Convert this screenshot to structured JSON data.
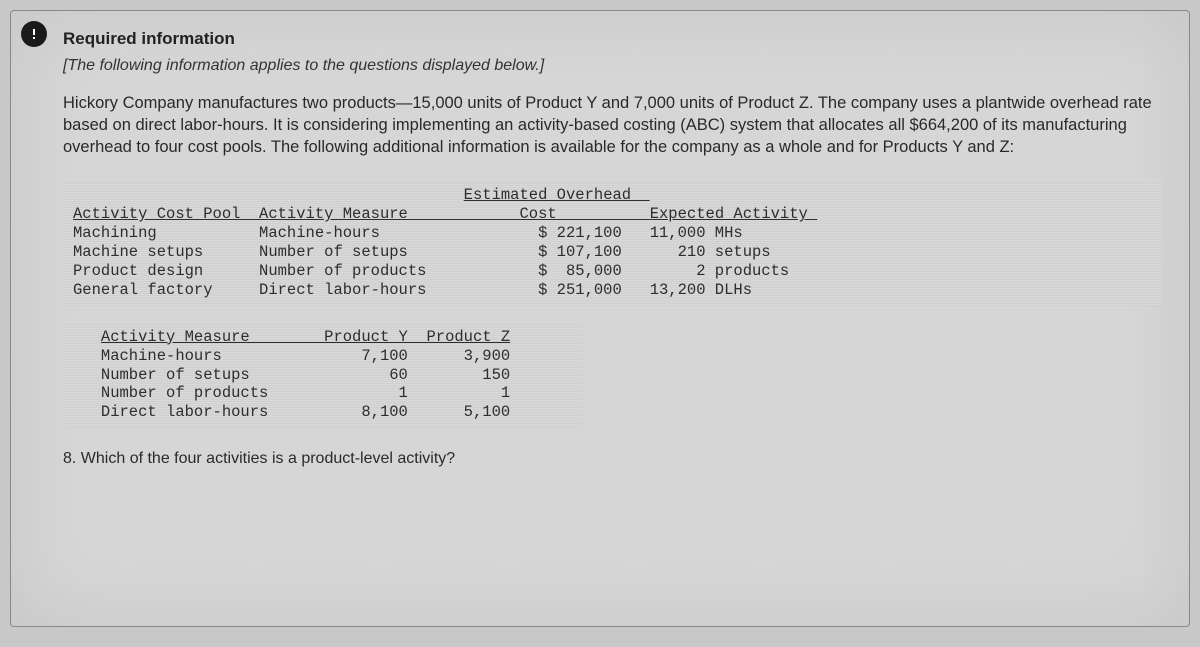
{
  "alert_icon_name": "warning-icon",
  "header": "Required information",
  "subheader": "[The following information applies to the questions displayed below.]",
  "paragraph": "Hickory Company manufactures two products—15,000 units of Product Y and 7,000 units of Product Z. The company uses a plantwide overhead rate based on direct labor-hours. It is considering implementing an activity-based costing (ABC) system that allocates all $664,200 of its manufacturing overhead to four cost pools. The following additional information is available for the company as a whole and for Products Y and Z:",
  "table1": {
    "type": "table",
    "font": "monospace",
    "font_size": 15.5,
    "text_color": "#2d2d2d",
    "background_pattern": [
      "#d0d0d0",
      "#d8d8d8"
    ],
    "columns": [
      "Activity Cost Pool",
      "Activity Measure",
      "Estimated Overhead Cost",
      "Expected Activity"
    ],
    "col_header_underline": true,
    "rows": [
      [
        "Machining",
        "Machine-hours",
        "$ 221,100",
        "11,000 MHs"
      ],
      [
        "Machine setups",
        "Number of setups",
        "$ 107,100",
        "   210 setups"
      ],
      [
        "Product design",
        "Number of products",
        "$  85,000",
        "     2 products"
      ],
      [
        "General factory",
        "Direct labor-hours",
        "$ 251,000",
        "13,200 DLHs"
      ]
    ],
    "col_widths_ch": [
      20,
      22,
      20,
      18
    ]
  },
  "table2": {
    "type": "table",
    "font": "monospace",
    "font_size": 15.5,
    "text_color": "#2d2d2d",
    "background_pattern": [
      "#d0d0d0",
      "#d8d8d8"
    ],
    "columns": [
      "Activity Measure",
      "Product Y",
      "Product Z"
    ],
    "col_header_underline": true,
    "rows": [
      [
        "Machine-hours",
        "7,100",
        "3,900"
      ],
      [
        "Number of setups",
        "60",
        "150"
      ],
      [
        "Number of products",
        "1",
        "1"
      ],
      [
        "Direct labor-hours",
        "8,100",
        "5,100"
      ]
    ],
    "col_widths_ch": [
      22,
      11,
      11
    ]
  },
  "question": "8. Which of the four activities is a product-level activity?"
}
